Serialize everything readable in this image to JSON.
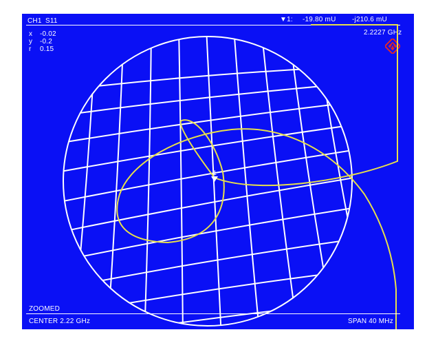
{
  "header": {
    "channel": "CH1",
    "parameter": "S11",
    "marker_symbol": "▼1:",
    "marker_real": "-19.80 mU",
    "marker_imag": "-j210.6 mU",
    "marker_freq": "2.2227 GHz"
  },
  "zoom_params": [
    {
      "label": "x",
      "value": "-0.02"
    },
    {
      "label": "y",
      "value": "-0.2"
    },
    {
      "label": "r",
      "value": "0.15"
    }
  ],
  "status": {
    "zoom": "ZOOMED",
    "center": "CENTER 2.22 GHz",
    "span": "SPAN 40 MHz"
  },
  "marker": {
    "label": "1"
  },
  "colors": {
    "background": "#0a10f5",
    "grid": "#ffffff",
    "trace": "#e8e04a",
    "logo": "#e02828"
  },
  "icons": {
    "logo": "rohde-schwarz-logo-icon",
    "marker": "marker-triangle-icon"
  }
}
